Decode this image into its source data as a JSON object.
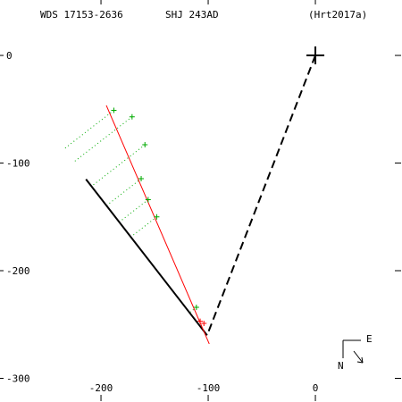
{
  "chart_data": {
    "type": "scatter",
    "title": "WDS 17153-2636",
    "subtitle": "SHJ 243AD",
    "reference": "(Hrt2017a)",
    "compass": {
      "east": "E",
      "north": "N"
    },
    "xlim": [
      -294.2,
      80.8
    ],
    "ylim": [
      -322,
      51.5
    ],
    "xticks": [
      -200,
      -100,
      0
    ],
    "yticks": [
      0,
      -100,
      -200,
      -300
    ],
    "primary": {
      "x": 0,
      "y": 0,
      "color": "#000000"
    },
    "series": [
      {
        "color": "#00aa00",
        "x": [
          -188,
          -171,
          -159,
          -162.5,
          -156,
          -148,
          -111
        ],
        "y": [
          -51,
          -57,
          -83,
          -114.5,
          -134,
          -150,
          -234
        ]
      },
      {
        "color": "#ff0000",
        "x": [
          -107.5,
          -104
        ],
        "y": [
          -247,
          -249
        ]
      }
    ],
    "orbit_line": {
      "color": "#ff0000",
      "x": [
        -195,
        -99
      ],
      "y": [
        -46.5,
        -268
      ]
    },
    "fit_line": {
      "color": "#000000",
      "x": [
        -214,
        -101
      ],
      "y": [
        -115,
        -260
      ]
    },
    "separation_line": {
      "color": "#000000",
      "x": [
        0,
        -101
      ],
      "y": [
        0,
        -260
      ]
    }
  }
}
